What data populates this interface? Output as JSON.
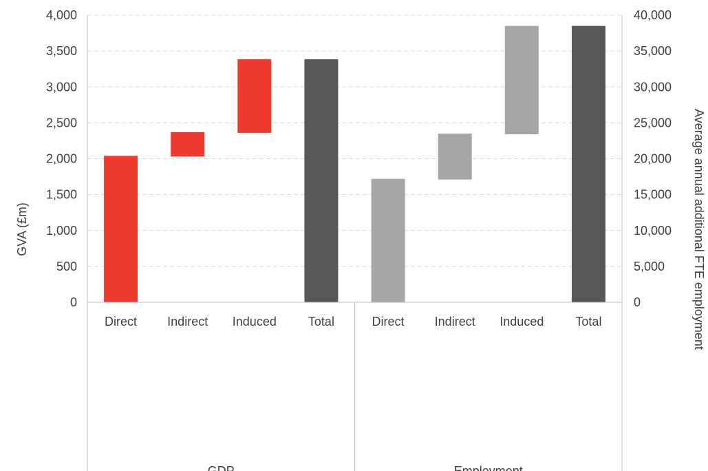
{
  "chart_data": {
    "type": "bar",
    "subtype": "waterfall",
    "categories": [
      "Direct",
      "Indirect",
      "Induced",
      "Total",
      "Direct",
      "Indirect",
      "Induced",
      "Total"
    ],
    "groups": [
      {
        "label": "GDP",
        "axis": "left"
      },
      {
        "label": "Employment",
        "axis": "right"
      }
    ],
    "series": [
      {
        "group": "GDP",
        "axis": "left",
        "bars": [
          {
            "label": "Direct",
            "base": 0,
            "top": 2040,
            "color": "#EE3A2E"
          },
          {
            "label": "Indirect",
            "base": 2030,
            "top": 2370,
            "color": "#EE3A2E"
          },
          {
            "label": "Induced",
            "base": 2360,
            "top": 3385,
            "color": "#EE3A2E"
          },
          {
            "label": "Total",
            "base": 0,
            "top": 3385,
            "color": "#575757"
          }
        ]
      },
      {
        "group": "Employment",
        "axis": "right",
        "bars": [
          {
            "label": "Direct",
            "base": 0,
            "top": 17200,
            "color": "#A6A6A6"
          },
          {
            "label": "Indirect",
            "base": 17100,
            "top": 23500,
            "color": "#A6A6A6"
          },
          {
            "label": "Induced",
            "base": 23400,
            "top": 38500,
            "color": "#A6A6A6"
          },
          {
            "label": "Total",
            "base": 0,
            "top": 38500,
            "color": "#575757"
          }
        ]
      }
    ],
    "y_left": {
      "label": "GVA (£m)",
      "range": [
        0,
        4000
      ],
      "ticks": [
        "0",
        "500",
        "1,000",
        "1,500",
        "2,000",
        "2,500",
        "3,000",
        "3,500",
        "4,000"
      ]
    },
    "y_right": {
      "label": "Average annual additional FTE employment",
      "range": [
        0,
        40000
      ],
      "ticks": [
        "0",
        "5,000",
        "10,000",
        "15,000",
        "20,000",
        "25,000",
        "30,000",
        "35,000",
        "40,000"
      ]
    },
    "grid": true
  }
}
